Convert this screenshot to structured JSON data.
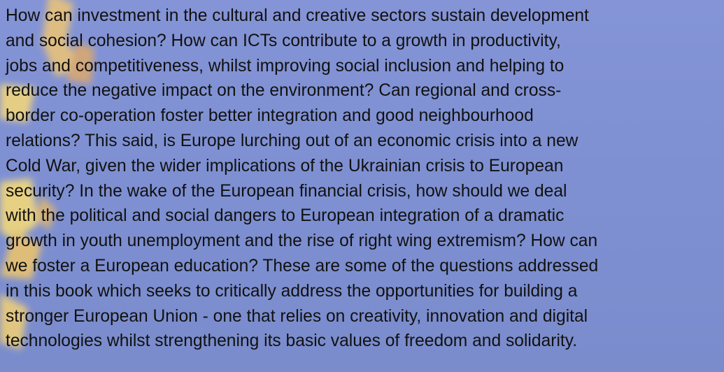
{
  "body": {
    "lines": [
      "How can investment in the cultural and creative sectors sustain development",
      "and social cohesion? How can ICTs contribute to a growth in productivity,",
      "jobs and competitiveness, whilst improving social inclusion and helping to",
      "reduce the negative impact on the environment? Can regional and cross-",
      "border co-operation foster better integration and good neighbourhood",
      "relations? This said, is Europe lurching out of an economic crisis into a new",
      "Cold War, given the wider implications of the Ukrainian crisis to European",
      "security? In the wake of the European financial crisis, how should we deal",
      "with the political and social dangers to European integration of a dramatic",
      "growth in youth unemployment and the rise of right wing extremism? How can",
      "we foster a European education? These are some of the questions addressed",
      "in this book which seeks to critically address the opportunities for building a",
      "stronger European Union - one that relies on creativity, innovation and digital",
      "technologies whilst strengthening its basic values of freedom and solidarity."
    ]
  }
}
